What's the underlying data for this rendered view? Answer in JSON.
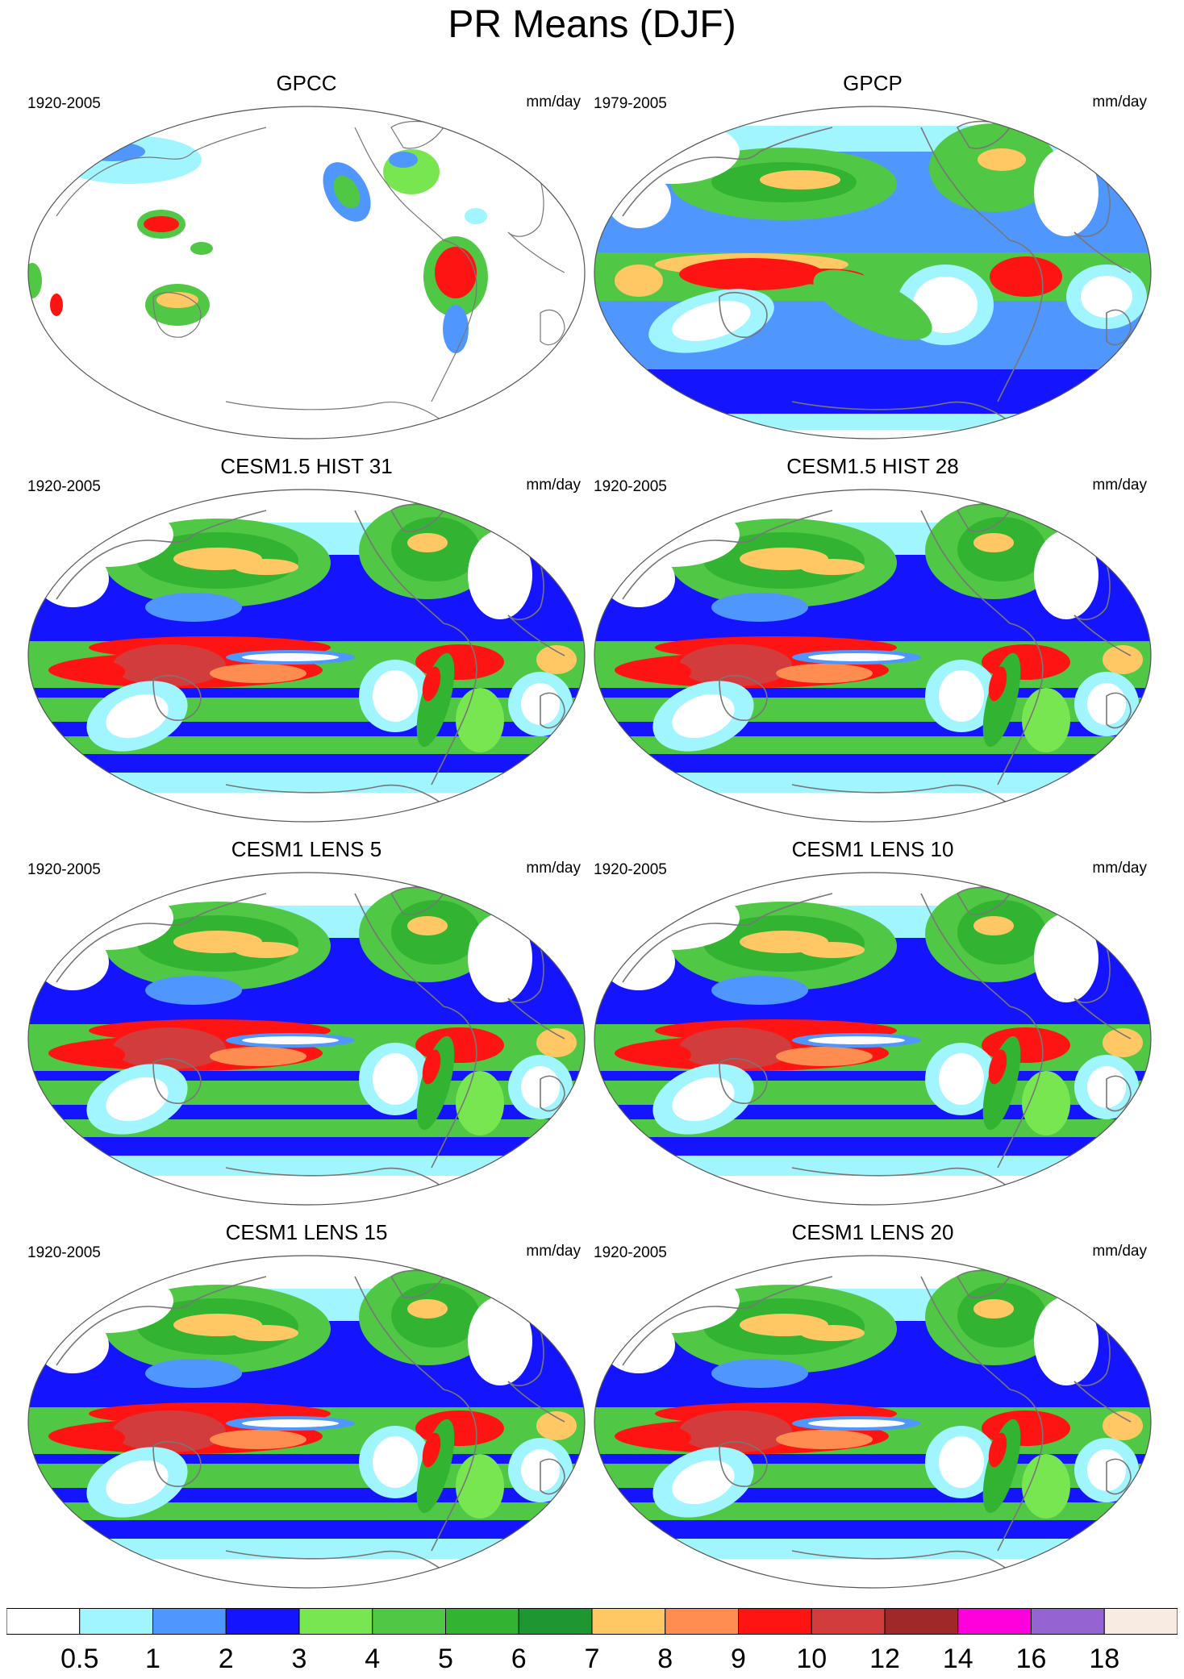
{
  "title": "PR Means (DJF)",
  "panels": [
    {
      "title": "GPCC",
      "years": "1920-2005",
      "units": "mm/day",
      "style": "obs_land"
    },
    {
      "title": "GPCP",
      "years": "1979-2005",
      "units": "mm/day",
      "style": "obs_global"
    },
    {
      "title": "CESM1.5 HIST 31",
      "years": "1920-2005",
      "units": "mm/day",
      "style": "model"
    },
    {
      "title": "CESM1.5 HIST 28",
      "years": "1920-2005",
      "units": "mm/day",
      "style": "model"
    },
    {
      "title": "CESM1 LENS 5",
      "years": "1920-2005",
      "units": "mm/day",
      "style": "model"
    },
    {
      "title": "CESM1 LENS 10",
      "years": "1920-2005",
      "units": "mm/day",
      "style": "model"
    },
    {
      "title": "CESM1 LENS 15",
      "years": "1920-2005",
      "units": "mm/day",
      "style": "model"
    },
    {
      "title": "CESM1 LENS 20",
      "years": "1920-2005",
      "units": "mm/day",
      "style": "model"
    }
  ],
  "colorbar": {
    "labels": [
      "0.5",
      "1",
      "2",
      "3",
      "4",
      "5",
      "6",
      "7",
      "8",
      "9",
      "10",
      "12",
      "14",
      "16",
      "18"
    ],
    "colors": [
      "#ffffff",
      "#a0f5ff",
      "#5096ff",
      "#1414ff",
      "#78e650",
      "#50c846",
      "#32b432",
      "#1e9632",
      "#ffc864",
      "#ff8c50",
      "#ff1414",
      "#d23c3c",
      "#a02828",
      "#ff00dc",
      "#9664d2",
      "#f8ebe1"
    ]
  },
  "map_colors": {
    "coast": "#777777",
    "outline": "#555555"
  }
}
